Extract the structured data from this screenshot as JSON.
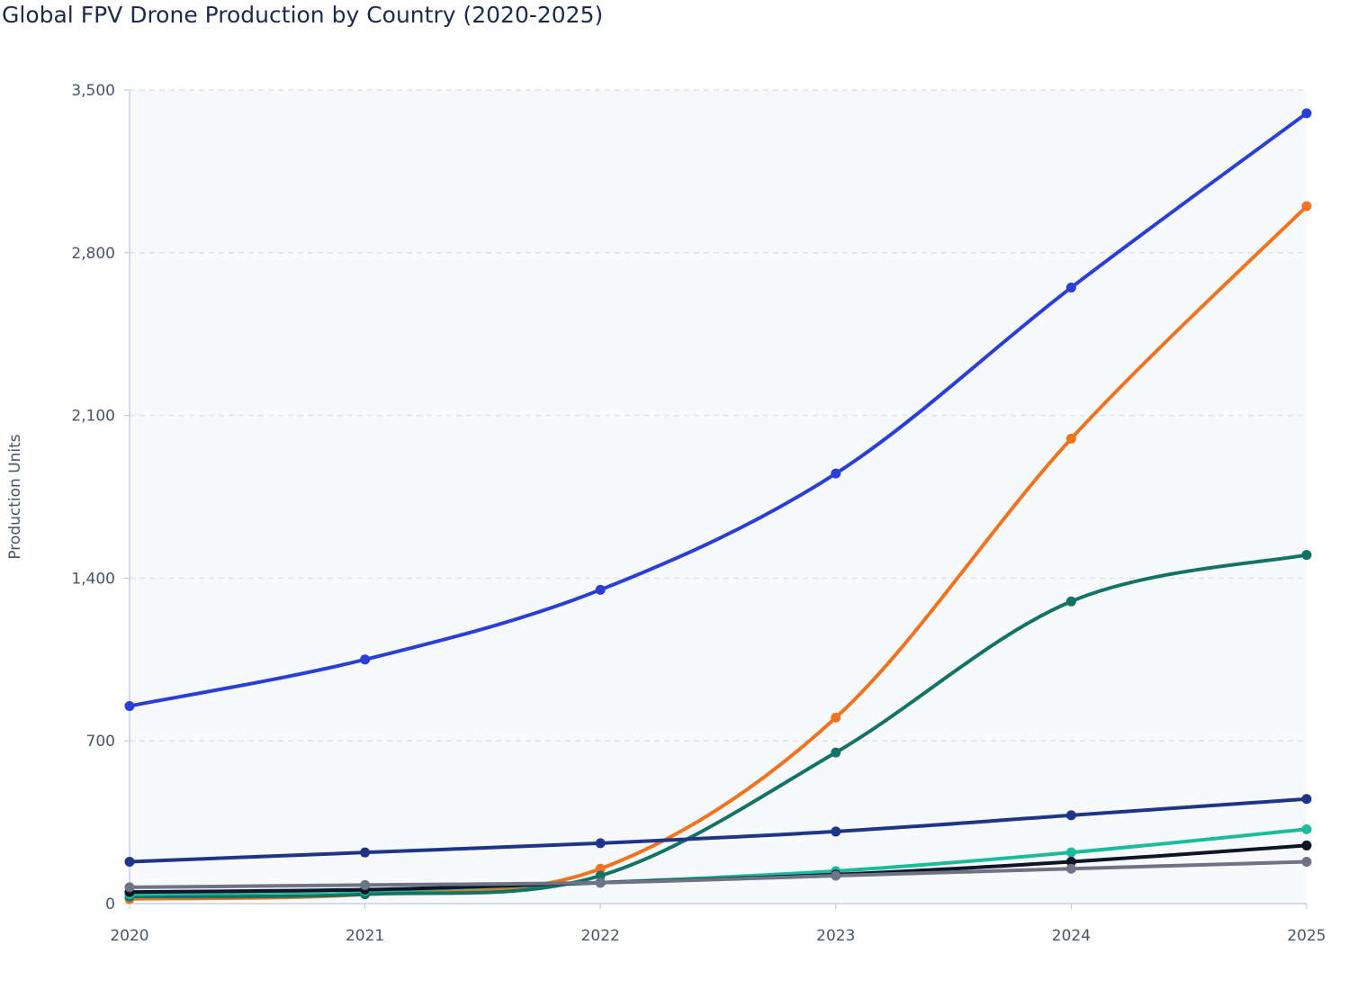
{
  "chart_data": {
    "type": "line",
    "title": "Global FPV Drone Production by Country (2020-2025)",
    "xlabel": "",
    "ylabel": "Production Units",
    "x": [
      2020,
      2021,
      2022,
      2023,
      2024,
      2025
    ],
    "ylim": [
      0,
      3500
    ],
    "yticks": [
      0,
      700,
      1400,
      2100,
      2800,
      3500
    ],
    "ytick_labels": [
      "0",
      "700",
      "1,400",
      "2,100",
      "2,800",
      "3,500"
    ],
    "grid": true,
    "legend": "none",
    "series": [
      {
        "color": "#2a3fd6",
        "values": [
          850,
          1050,
          1350,
          1850,
          2650,
          3400
        ]
      },
      {
        "color": "#f07420",
        "values": [
          20,
          40,
          150,
          800,
          2000,
          3000
        ]
      },
      {
        "color": "#137366",
        "values": [
          30,
          40,
          120,
          650,
          1300,
          1500
        ]
      },
      {
        "color": "#1f3588",
        "values": [
          180,
          220,
          260,
          310,
          380,
          450
        ]
      },
      {
        "color": "#1abc9c",
        "values": [
          40,
          55,
          90,
          140,
          220,
          320
        ]
      },
      {
        "color": "#0d1526",
        "values": [
          50,
          60,
          90,
          125,
          180,
          250
        ]
      },
      {
        "color": "#6e7385",
        "values": [
          70,
          80,
          90,
          120,
          150,
          180
        ]
      }
    ]
  }
}
